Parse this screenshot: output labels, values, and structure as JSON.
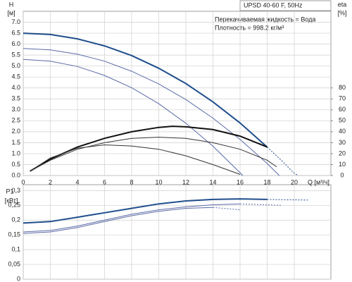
{
  "chart_data": [
    {
      "type": "line",
      "title": "UPSD 40-60 F, 50Hz",
      "annotations": [
        "Перекачиваемая жидкость = Вода",
        "Плотность = 998.2 кг/м³"
      ],
      "y_label": "H",
      "y_unit": "[м]",
      "y2_label": "eta",
      "y2_unit": "[%]",
      "x_label": "Q [м³/ч]",
      "xlim": [
        0,
        22.7
      ],
      "xticks": [
        0,
        2,
        4,
        6,
        8,
        10,
        12,
        14,
        16,
        18,
        20
      ],
      "ylim": [
        0,
        7.5
      ],
      "yticks": [
        {
          "value": 0,
          "label": "0.0"
        },
        0.5,
        {
          "value": 1,
          "label": "1.0"
        },
        1.5,
        {
          "value": 2,
          "label": "2.0"
        },
        2.5,
        {
          "value": 3,
          "label": "3.0"
        },
        3.5,
        {
          "value": 4,
          "label": "4.0"
        },
        4.5,
        {
          "value": 5,
          "label": "5.0"
        },
        5.5,
        {
          "value": 6,
          "label": "6.0"
        },
        6.5,
        {
          "value": 7,
          "label": "7.0"
        }
      ],
      "y2lim": [
        0,
        150
      ],
      "y2ticks": [
        0,
        10,
        20,
        30,
        40,
        50,
        60,
        70,
        80
      ],
      "grid": true,
      "series": [
        {
          "color": "#1f4e8c",
          "linewidth": 2,
          "x": [
            0,
            2,
            4,
            6,
            8,
            10,
            12,
            14,
            16,
            18
          ],
          "values": [
            6.5,
            6.44,
            6.24,
            5.92,
            5.48,
            4.9,
            4.2,
            3.36,
            2.4,
            1.3
          ]
        },
        {
          "color": "#1f4e8c",
          "linewidth": 1,
          "dash": true,
          "x": [
            18,
            19,
            20,
            20.3
          ],
          "values": [
            1.3,
            0.72,
            0.1,
            0
          ]
        },
        {
          "color": "#5a6aa6",
          "linewidth": 1,
          "x": [
            0,
            2,
            4,
            6,
            8,
            10,
            12,
            14,
            16,
            18,
            18.9
          ],
          "values": [
            5.8,
            5.74,
            5.54,
            5.22,
            4.76,
            4.18,
            3.47,
            2.62,
            1.65,
            0.55,
            0
          ]
        },
        {
          "color": "#5a6aa6",
          "linewidth": 1,
          "x": [
            0,
            2,
            4,
            6,
            8,
            10,
            12,
            14,
            16,
            16.2
          ],
          "values": [
            5.3,
            5.22,
            4.98,
            4.57,
            4.01,
            3.28,
            2.39,
            1.34,
            0.13,
            0
          ]
        },
        {
          "color": "#111111",
          "linewidth": 2,
          "axis": "y2",
          "x": [
            0.5,
            2,
            4,
            6,
            8,
            10,
            11,
            12,
            14,
            16,
            18
          ],
          "values": [
            4,
            15,
            26,
            34,
            40,
            44,
            45,
            44.5,
            42,
            36,
            26
          ]
        },
        {
          "color": "#333333",
          "linewidth": 1,
          "axis": "y2",
          "x": [
            0.5,
            2,
            4,
            6,
            8,
            10,
            12,
            14,
            16,
            18,
            18.7
          ],
          "values": [
            4,
            14,
            24,
            30,
            34,
            35,
            34,
            30,
            24,
            14,
            8
          ]
        },
        {
          "color": "#333333",
          "linewidth": 1,
          "axis": "y2",
          "x": [
            0.5,
            2,
            4,
            6,
            8,
            10,
            12,
            14,
            16
          ],
          "values": [
            4,
            16,
            25,
            28,
            27,
            24,
            18,
            10,
            1
          ]
        }
      ]
    },
    {
      "type": "line",
      "y_label": "P1",
      "y_unit": "[кВт]",
      "xlim": [
        0,
        22.7
      ],
      "xticks": [
        0,
        2,
        4,
        6,
        8,
        10,
        12,
        14,
        16,
        18,
        20
      ],
      "ylim": [
        0,
        0.32
      ],
      "yticks": [
        0,
        {
          "value": 0.05,
          "label": "0,05"
        },
        {
          "value": 0.1,
          "label": "0,1"
        },
        {
          "value": 0.15,
          "label": "0,15"
        },
        {
          "value": 0.2,
          "label": "0,2"
        },
        {
          "value": 0.25,
          "label": "0,25"
        },
        {
          "value": 0.3,
          "label": "0,3"
        }
      ],
      "grid": true,
      "series": [
        {
          "color": "#1f4e8c",
          "linewidth": 2,
          "x": [
            0,
            2,
            4,
            6,
            8,
            10,
            12,
            14,
            16,
            18
          ],
          "values": [
            0.19,
            0.195,
            0.21,
            0.225,
            0.24,
            0.255,
            0.265,
            0.27,
            0.272,
            0.27
          ]
        },
        {
          "color": "#1f4e8c",
          "linewidth": 1,
          "dash": true,
          "x": [
            18,
            21
          ],
          "values": [
            0.27,
            0.268
          ]
        },
        {
          "color": "#5a6aa6",
          "linewidth": 1,
          "x": [
            0,
            2,
            4,
            6,
            8,
            10,
            12,
            14,
            16
          ],
          "values": [
            0.16,
            0.165,
            0.18,
            0.2,
            0.22,
            0.235,
            0.245,
            0.252,
            0.255
          ]
        },
        {
          "color": "#5a6aa6",
          "linewidth": 1,
          "dash": true,
          "x": [
            16,
            19
          ],
          "values": [
            0.255,
            0.25
          ]
        },
        {
          "color": "#5a6aa6",
          "linewidth": 1,
          "x": [
            0,
            2,
            4,
            6,
            8,
            10,
            12,
            14
          ],
          "values": [
            0.155,
            0.16,
            0.175,
            0.195,
            0.215,
            0.23,
            0.24,
            0.243
          ]
        },
        {
          "color": "#5a6aa6",
          "linewidth": 1,
          "dash": true,
          "x": [
            14,
            16
          ],
          "values": [
            0.243,
            0.235
          ]
        }
      ]
    }
  ]
}
